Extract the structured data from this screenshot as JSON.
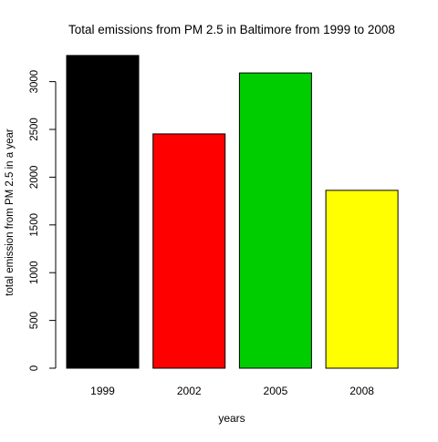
{
  "chart_data": {
    "type": "bar",
    "title": "Total emissions from PM 2.5 in Baltimore from 1999 to 2008",
    "xlabel": "years",
    "ylabel": "total emission from PM 2.5 in  a year",
    "categories": [
      "1999",
      "2002",
      "2005",
      "2008"
    ],
    "values": [
      3274,
      2453,
      3091,
      1862
    ],
    "colors": [
      "#000000",
      "#ff0000",
      "#00cd00",
      "#ffff00"
    ],
    "ylim": [
      0,
      3300
    ],
    "yticks": [
      0,
      500,
      1000,
      1500,
      2000,
      2500,
      3000
    ],
    "grid": false,
    "legend": "none"
  }
}
